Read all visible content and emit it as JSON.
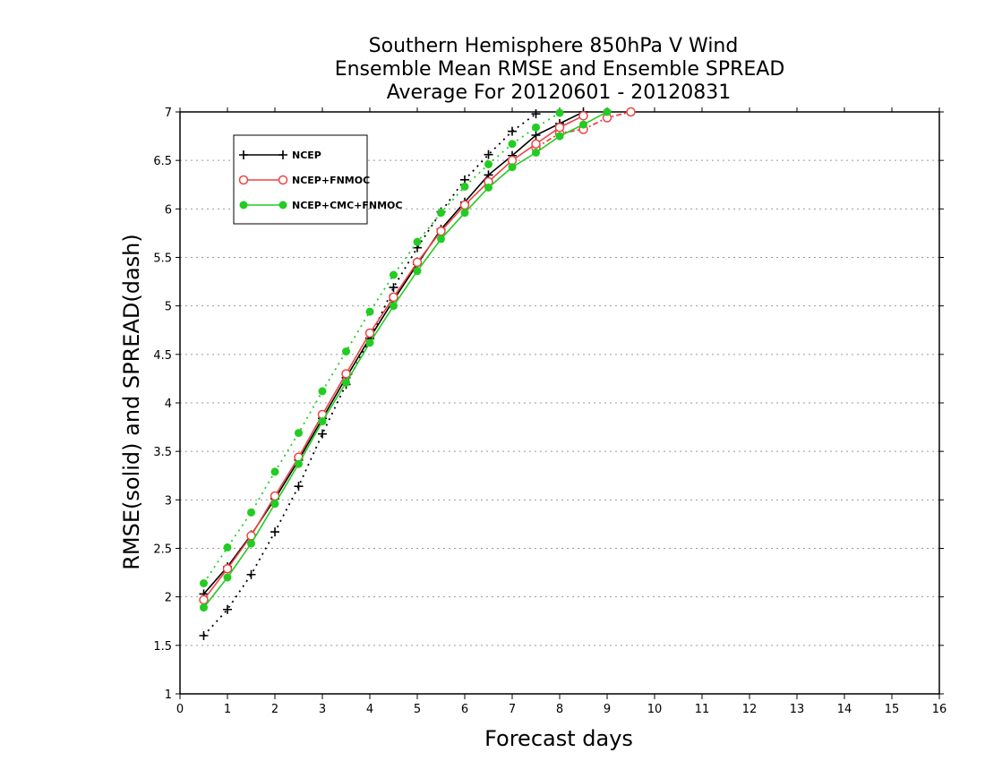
{
  "chart_data": {
    "type": "line",
    "title": [
      "Southern Hemisphere 850hPa V Wind",
      "Ensemble Mean RMSE and Ensemble SPREAD",
      "Average For 20120601 - 20120831"
    ],
    "xlabel": "Forecast days",
    "ylabel": "RMSE(solid) and SPREAD(dash)",
    "xlim": [
      0,
      16
    ],
    "ylim": [
      1,
      7
    ],
    "xticks": [
      0,
      1,
      2,
      3,
      4,
      5,
      6,
      7,
      8,
      9,
      10,
      11,
      12,
      13,
      14,
      15,
      16
    ],
    "yticks": [
      1,
      1.5,
      2,
      2.5,
      3,
      3.5,
      4,
      4.5,
      5,
      5.5,
      6,
      6.5,
      7
    ],
    "grid": "horizontal dotted",
    "legend_position": "top-left",
    "series": [
      {
        "name": "NCEP",
        "color": "#000000",
        "marker": "plus",
        "rmse": {
          "x": [
            0.5,
            1,
            1.5,
            2,
            2.5,
            3,
            3.5,
            4,
            4.5,
            5,
            5.5,
            6,
            6.5,
            7,
            7.5,
            8,
            8.5
          ],
          "y": [
            2.03,
            2.31,
            2.64,
            3.01,
            3.41,
            3.84,
            4.26,
            4.67,
            5.06,
            5.43,
            5.79,
            6.07,
            6.35,
            6.55,
            6.76,
            6.88,
            7.0
          ]
        },
        "spread": {
          "x": [
            0.5,
            1,
            1.5,
            2,
            2.5,
            3,
            3.5,
            4,
            4.5,
            5,
            5.5,
            6,
            6.5,
            7,
            7.5
          ],
          "y": [
            1.6,
            1.87,
            2.23,
            2.67,
            3.14,
            3.68,
            4.19,
            4.66,
            5.19,
            5.6,
            5.97,
            6.3,
            6.56,
            6.8,
            6.98
          ]
        }
      },
      {
        "name": "NCEP+FNMOC",
        "color": "#ee4444",
        "marker": "open-circle",
        "rmse": {
          "x": [
            0.5,
            1,
            1.5,
            2,
            2.5,
            3,
            3.5,
            4,
            4.5,
            5,
            5.5,
            6,
            6.5,
            7,
            7.5,
            8,
            8.5
          ],
          "y": [
            1.97,
            2.29,
            2.63,
            3.04,
            3.44,
            3.88,
            4.3,
            4.72,
            5.09,
            5.45,
            5.77,
            6.04,
            6.28,
            6.5,
            6.67,
            6.84,
            6.96
          ]
        },
        "spread": {
          "x": [
            7.5,
            8,
            8.5,
            9,
            9.5
          ],
          "y": [
            6.63,
            6.78,
            6.82,
            6.94,
            7.0
          ]
        }
      },
      {
        "name": "NCEP+CMC+FNMOC",
        "color": "#22cc22",
        "marker": "filled-circle",
        "rmse": {
          "x": [
            0.5,
            1,
            1.5,
            2,
            2.5,
            3,
            3.5,
            4,
            4.5,
            5,
            5.5,
            6,
            6.5,
            7,
            7.5,
            8,
            8.5,
            9
          ],
          "y": [
            1.89,
            2.2,
            2.55,
            2.96,
            3.37,
            3.81,
            4.21,
            4.62,
            5.0,
            5.36,
            5.69,
            5.96,
            6.22,
            6.43,
            6.58,
            6.75,
            6.87,
            7.0
          ]
        },
        "spread": {
          "x": [
            0.5,
            1,
            1.5,
            2,
            2.5,
            3,
            3.5,
            4,
            4.5,
            5,
            5.5,
            6,
            6.5,
            7,
            7.5,
            8
          ],
          "y": [
            2.14,
            2.51,
            2.87,
            3.29,
            3.69,
            4.12,
            4.53,
            4.94,
            5.32,
            5.66,
            5.96,
            6.23,
            6.46,
            6.67,
            6.84,
            6.99
          ]
        }
      }
    ]
  }
}
